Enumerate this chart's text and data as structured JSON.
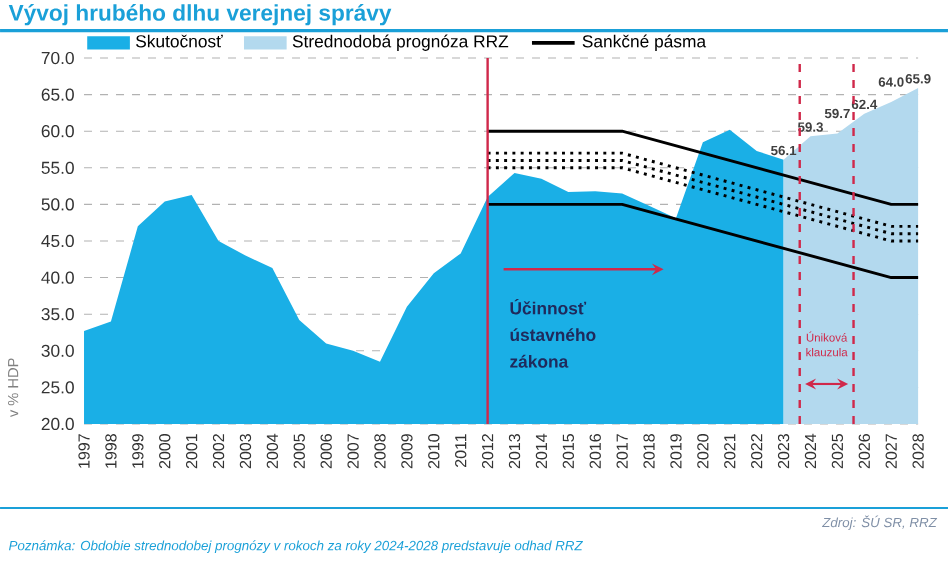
{
  "chart_data": {
    "type": "area",
    "title": "Vývoj hrubého dlhu verejnej správy",
    "ylabel": "v % HDP",
    "xlim": [
      1997,
      2028
    ],
    "xticks": [
      1997,
      1998,
      1999,
      2000,
      2001,
      2002,
      2003,
      2004,
      2005,
      2006,
      2007,
      2008,
      2009,
      2010,
      2011,
      2012,
      2013,
      2014,
      2015,
      2016,
      2017,
      2018,
      2019,
      2020,
      2021,
      2022,
      2023,
      2024,
      2025,
      2026,
      2027,
      2028
    ],
    "ylim": [
      20,
      70
    ],
    "yticks": [
      {
        "value": 20,
        "label": "20.0"
      },
      {
        "value": 25,
        "label": "25.0"
      },
      {
        "value": 30,
        "label": "30.0"
      },
      {
        "value": 35,
        "label": "35.0"
      },
      {
        "value": 40,
        "label": "40.0"
      },
      {
        "value": 45,
        "label": "45.0"
      },
      {
        "value": 50,
        "label": "50.0"
      },
      {
        "value": 55,
        "label": "55.0"
      },
      {
        "value": 60,
        "label": "60.0"
      },
      {
        "value": 65,
        "label": "65.0"
      },
      {
        "value": 70,
        "label": "70.0"
      }
    ],
    "grid": "y",
    "legend": "top left",
    "series": [
      {
        "name": "Skutočnosť",
        "color": "#1aafe6",
        "x": [
          1997,
          1998,
          1999,
          2000,
          2001,
          2002,
          2003,
          2004,
          2005,
          2006,
          2007,
          2008,
          2009,
          2010,
          2011,
          2012,
          2013,
          2014,
          2015,
          2016,
          2017,
          2018,
          2019,
          2020,
          2021,
          2022,
          2023
        ],
        "values": [
          32.7,
          34.0,
          47.0,
          50.4,
          51.3,
          45.0,
          43.0,
          41.3,
          34.2,
          31.0,
          30.0,
          28.5,
          36.0,
          40.6,
          43.3,
          51.0,
          54.3,
          53.5,
          51.7,
          51.8,
          51.5,
          49.8,
          48.1,
          58.5,
          60.2,
          57.3,
          56.1
        ]
      },
      {
        "name": "Strednodobá prognóza RRZ",
        "color": "#b3d9ee",
        "x": [
          2023,
          2024,
          2025,
          2026,
          2027,
          2028
        ],
        "values": [
          56.1,
          59.3,
          59.7,
          62.4,
          64.0,
          65.9
        ],
        "value_labels": [
          "56.1",
          "59.3",
          "59.7",
          "62.4",
          "64.0",
          "65.9"
        ]
      },
      {
        "name": "Sankčné pásma",
        "type": "line",
        "color": "#000000",
        "line_style": "solid",
        "x": [
          2012,
          2017,
          2027,
          2028
        ],
        "values": [
          60,
          60,
          50,
          50
        ]
      },
      {
        "type": "line",
        "color": "#000000",
        "line_style": "dotted",
        "x": [
          2012,
          2017,
          2027,
          2028
        ],
        "values": [
          57,
          57,
          47,
          47
        ]
      },
      {
        "type": "line",
        "color": "#000000",
        "line_style": "dotted",
        "x": [
          2012,
          2017,
          2027,
          2028
        ],
        "values": [
          56,
          56,
          46,
          46
        ]
      },
      {
        "type": "line",
        "color": "#000000",
        "line_style": "dotted",
        "x": [
          2012,
          2017,
          2027,
          2028
        ],
        "values": [
          55,
          55,
          45,
          45
        ]
      },
      {
        "type": "line",
        "color": "#000000",
        "line_style": "solid",
        "x": [
          2012,
          2017,
          2027,
          2028
        ],
        "values": [
          50,
          50,
          40,
          40
        ]
      }
    ],
    "ref_lines": [
      {
        "axis": "x",
        "value": 2012,
        "color": "#d0284a",
        "line_style": "solid"
      },
      {
        "axis": "x",
        "value": 2023.6,
        "color": "#d0284a",
        "line_style": "dashed"
      },
      {
        "axis": "x",
        "value": 2025.6,
        "color": "#d0284a",
        "line_style": "dashed"
      }
    ],
    "annotations": [
      "Účinnosť ústavného zákona",
      "Úniková klauzula",
      "Zdroj: ŠÚ SR, RRZ",
      "Poznámka: Obdobie strednodobej prognózy v rokoch za roky 2024-2028 predstavuje odhad RRZ"
    ]
  }
}
